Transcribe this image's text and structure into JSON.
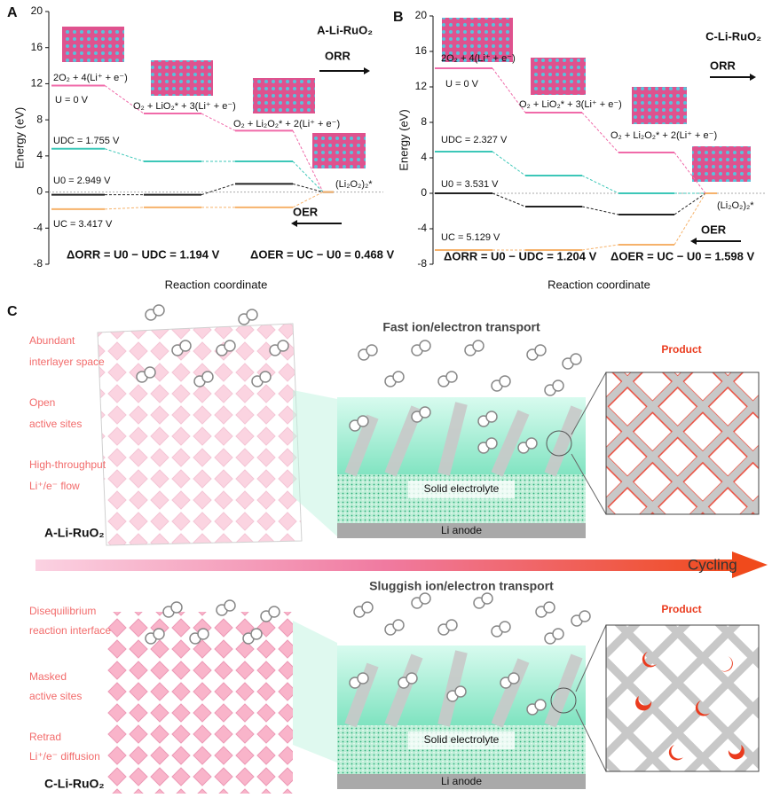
{
  "panel_a": {
    "label": "A",
    "title": "A-Li-RuO₂",
    "ylabel": "Energy (eV)",
    "xlabel": "Reaction coordinate",
    "ylim": [
      -8,
      20
    ],
    "yticks": [
      -8,
      -4,
      0,
      4,
      8,
      12,
      16,
      20
    ],
    "levels": [
      {
        "color": "#f06aa9",
        "values": [
          11.8,
          8.7,
          6.8,
          0
        ]
      },
      {
        "color": "#3cc7b8",
        "values": [
          4.8,
          3.4,
          3.4,
          0
        ]
      },
      {
        "color": "#222222",
        "values": [
          -0.3,
          -0.3,
          0.9,
          0
        ]
      },
      {
        "color": "#f6b26b",
        "values": [
          -1.9,
          -1.7,
          -1.7,
          0
        ]
      }
    ],
    "annotations": [
      "2O₂ + 4(Li⁺ + e⁻)",
      "U = 0 V",
      "O₂ + LiO₂* + 3(Li⁺ + e⁻)",
      "O₂ + Li₂O₂* + 2(Li⁺ + e⁻)",
      "(Li₂O₂)₂*",
      "UDC = 1.755 V",
      "U0 = 2.949 V",
      "UC = 3.417 V",
      "ORR",
      "OER",
      "ΔORR = U0 − UDC = 1.194 V",
      "ΔOER = UC − U0 = 0.468 V"
    ]
  },
  "panel_b": {
    "label": "B",
    "title": "C-Li-RuO₂",
    "ylabel": "Energy (eV)",
    "xlabel": "Reaction coordinate",
    "ylim": [
      -8,
      20
    ],
    "yticks": [
      -8,
      -4,
      0,
      4,
      8,
      12,
      16,
      20
    ],
    "levels": [
      {
        "color": "#f06aa9",
        "values": [
          14.1,
          9.1,
          4.6,
          0
        ]
      },
      {
        "color": "#3cc7b8",
        "values": [
          4.7,
          2.0,
          0,
          0
        ]
      },
      {
        "color": "#222222",
        "values": [
          0,
          -1.5,
          -2.4,
          0
        ]
      },
      {
        "color": "#f6b26b",
        "values": [
          -6.4,
          -6.4,
          -5.8,
          0
        ]
      }
    ],
    "annotations": [
      "2O₂ + 4(Li⁺ + e⁻)",
      "U = 0 V",
      "O₂ + LiO₂* + 3(Li⁺ + e⁻)",
      "O₂ + Li₂O₂* + 2(Li⁺ + e⁻)",
      "(Li₂O₂)₂*",
      "UDC = 2.327 V",
      "U0 = 3.531 V",
      "UC = 5.129 V",
      "ORR",
      "OER",
      "ΔORR = U0 − UDC = 1.204 V",
      "ΔOER = UC − U0 = 1.598 V"
    ]
  },
  "panel_c": {
    "label": "C",
    "arrow": "Cycling",
    "top": {
      "notes": [
        [
          "Abundant",
          "interlayer space"
        ],
        [
          "Open",
          "active sites"
        ],
        [
          "High-throughput",
          "Li⁺/e⁻ flow"
        ]
      ],
      "material": "A-Li-RuO₂",
      "heading": "Fast ion/electron transport",
      "electrolyte": "Solid electrolyte",
      "anode": "Li anode",
      "product": "Product"
    },
    "bottom": {
      "notes": [
        [
          "Disequilibrium",
          "reaction interface"
        ],
        [
          "Masked",
          "active sites"
        ],
        [
          "Retrad",
          "Li⁺/e⁻ diffusion"
        ]
      ],
      "material": "C-Li-RuO₂",
      "heading": "Sluggish ion/electron transport",
      "electrolyte": "Solid electrolyte",
      "anode": "Li anode",
      "product": "Product"
    }
  }
}
